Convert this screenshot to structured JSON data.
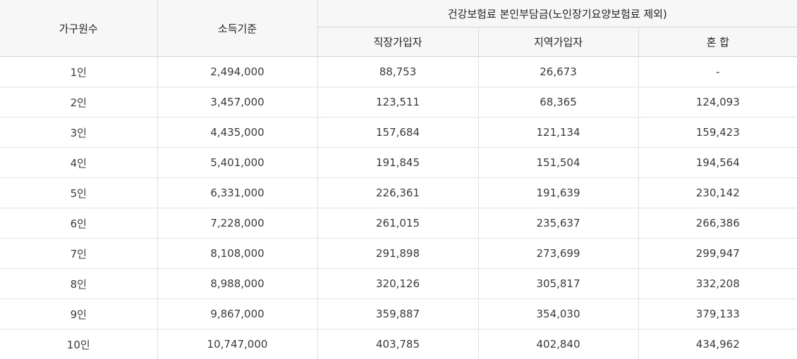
{
  "table": {
    "headers": {
      "household": "가구원수",
      "income": "소득기준",
      "premium_group": "건강보험료 본인부담금(노인장기요양보험료 제외)",
      "employee": "직장가입자",
      "regional": "지역가입자",
      "mixed": "혼 합"
    },
    "rows": [
      {
        "household": "1인",
        "income": "2,494,000",
        "employee": "88,753",
        "regional": "26,673",
        "mixed": "-"
      },
      {
        "household": "2인",
        "income": "3,457,000",
        "employee": "123,511",
        "regional": "68,365",
        "mixed": "124,093"
      },
      {
        "household": "3인",
        "income": "4,435,000",
        "employee": "157,684",
        "regional": "121,134",
        "mixed": "159,423"
      },
      {
        "household": "4인",
        "income": "5,401,000",
        "employee": "191,845",
        "regional": "151,504",
        "mixed": "194,564"
      },
      {
        "household": "5인",
        "income": "6,331,000",
        "employee": "226,361",
        "regional": "191,639",
        "mixed": "230,142"
      },
      {
        "household": "6인",
        "income": "7,228,000",
        "employee": "261,015",
        "regional": "235,637",
        "mixed": "266,386"
      },
      {
        "household": "7인",
        "income": "8,108,000",
        "employee": "291,898",
        "regional": "273,699",
        "mixed": "299,947"
      },
      {
        "household": "8인",
        "income": "8,988,000",
        "employee": "320,126",
        "regional": "305,817",
        "mixed": "332,208"
      },
      {
        "household": "9인",
        "income": "9,867,000",
        "employee": "359,887",
        "regional": "354,030",
        "mixed": "379,133"
      },
      {
        "household": "10인",
        "income": "10,747,000",
        "employee": "403,785",
        "regional": "402,840",
        "mixed": "434,962"
      }
    ]
  }
}
